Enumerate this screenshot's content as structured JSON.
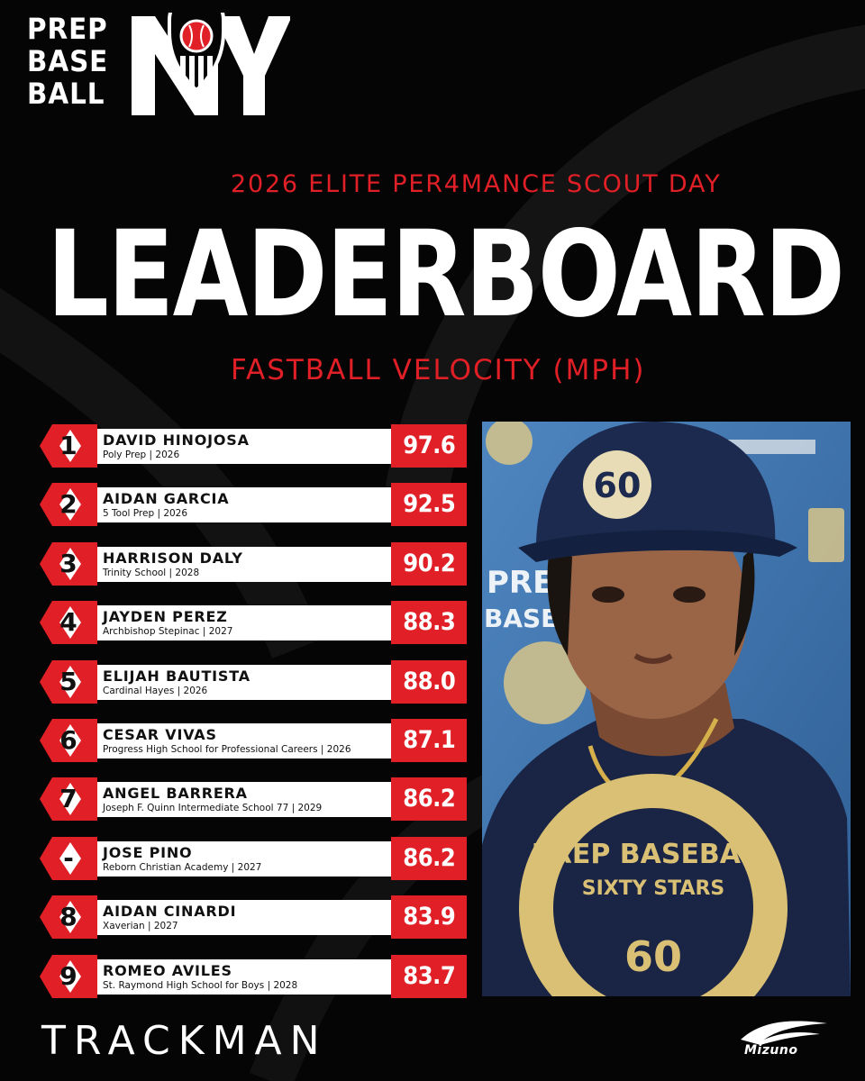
{
  "brand": {
    "logo_words": [
      "PREP",
      "BASE",
      "BALL"
    ],
    "logo_state": "NY"
  },
  "event_title": "2026 ELITE PER4MANCE SCOUT DAY",
  "main_title": "LEADERBOARD",
  "metric_title": "FASTBALL VELOCITY (MPH)",
  "leaderboard": [
    {
      "rank": "1",
      "name": "DAVID HINOJOSA",
      "school": "Poly Prep | 2026",
      "velocity": "97.6"
    },
    {
      "rank": "2",
      "name": "AIDAN GARCIA",
      "school": "5 Tool Prep | 2026",
      "velocity": "92.5"
    },
    {
      "rank": "3",
      "name": "HARRISON DALY",
      "school": "Trinity School | 2028",
      "velocity": "90.2"
    },
    {
      "rank": "4",
      "name": "JAYDEN PEREZ",
      "school": "Archbishop Stepinac | 2027",
      "velocity": "88.3"
    },
    {
      "rank": "5",
      "name": "ELIJAH BAUTISTA",
      "school": "Cardinal Hayes | 2026",
      "velocity": "88.0"
    },
    {
      "rank": "6",
      "name": "CESAR VIVAS",
      "school": "Progress High School for Professional Careers | 2026",
      "velocity": "87.1"
    },
    {
      "rank": "7",
      "name": "ANGEL BARRERA",
      "school": "Joseph F. Quinn Intermediate School 77 | 2029",
      "velocity": "86.2"
    },
    {
      "rank": "-",
      "name": "JOSE PINO",
      "school": "Reborn Christian Academy | 2027",
      "velocity": "86.2"
    },
    {
      "rank": "8",
      "name": "AIDAN CINARDI",
      "school": "Xaverian | 2027",
      "velocity": "83.9"
    },
    {
      "rank": "9",
      "name": "ROMEO AVILES",
      "school": "St. Raymond High School for Boys | 2028",
      "velocity": "83.7"
    }
  ],
  "photo": {
    "cap_logo_text": "60",
    "shirt_text": [
      "PREP BASEBALL",
      "SIXTY STARS"
    ],
    "backdrop_text": [
      "PREP",
      "BASEBALL"
    ]
  },
  "sponsors": {
    "trackman": "TRACKMAN",
    "mizuno": "Mizuno"
  },
  "colors": {
    "background": "#050505",
    "accent_red": "#e01f26",
    "white": "#ffffff",
    "photo_backdrop": "#3e6fa6"
  },
  "icons": [
    "baseball-shield-icon",
    "rank-diamond-icon",
    "mizuno-runbird-icon"
  ]
}
